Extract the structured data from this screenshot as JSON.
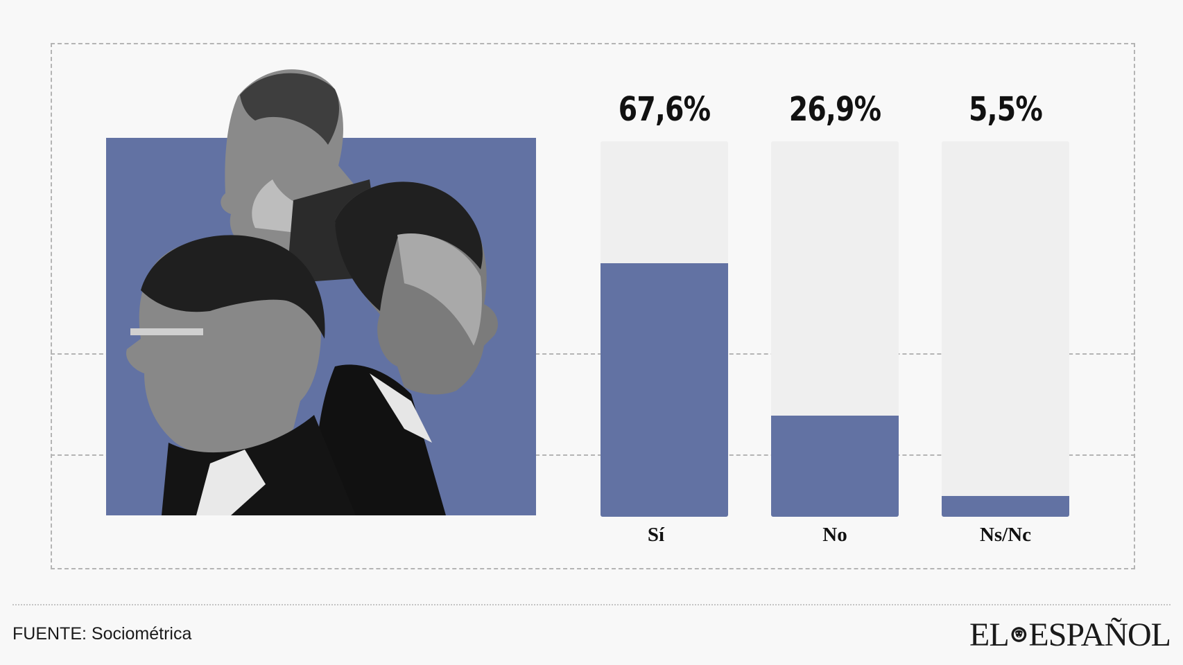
{
  "chart_data": {
    "type": "bar",
    "categories": [
      "Sí",
      "No",
      "Ns/Nc"
    ],
    "values": [
      67.6,
      26.9,
      5.5
    ],
    "value_labels": [
      "67,6%",
      "26,9%",
      "5,5%"
    ],
    "ylim": [
      0,
      100
    ],
    "bar_color": "#6272a3",
    "track_color": "#efefef",
    "grid": false
  },
  "footer": {
    "source": "FUENTE: Sociométrica",
    "logo_left": "EL",
    "logo_right": "ESPAÑOL"
  },
  "colors": {
    "accent": "#6272a3",
    "background": "#f8f8f8"
  }
}
